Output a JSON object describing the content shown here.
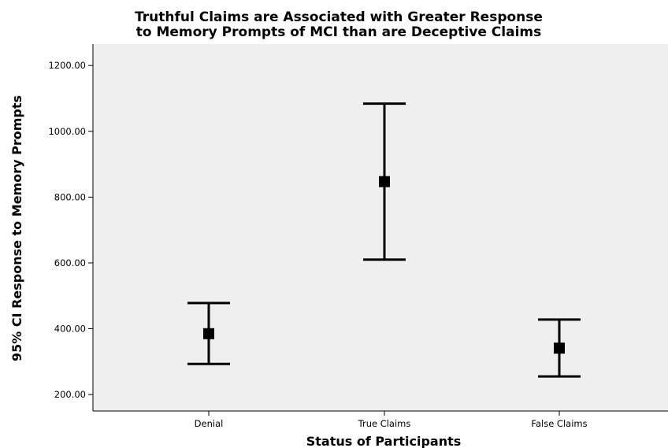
{
  "chart_data": {
    "type": "errorbar",
    "title_lines": [
      "Truthful Claims are Associated with Greater Response",
      "to Memory Prompts of MCI than are Deceptive Claims"
    ],
    "xlabel": "Status of Participants",
    "ylabel": "95% CI Response to Memory Prompts",
    "categories": [
      "Denial",
      "True Claims",
      "False Claims"
    ],
    "mean": [
      385,
      847,
      341
    ],
    "ci_lower": [
      293,
      610,
      255
    ],
    "ci_upper": [
      478,
      1084,
      428
    ],
    "yticks": [
      "200.00",
      "400.00",
      "600.00",
      "800.00",
      "1000.00",
      "1200.00"
    ],
    "ytick_values": [
      200,
      400,
      600,
      800,
      1000,
      1200
    ],
    "ylim": [
      150,
      1265
    ],
    "grid": false,
    "colors": {
      "plot_background": "#efefef",
      "marks": "#000000"
    }
  }
}
